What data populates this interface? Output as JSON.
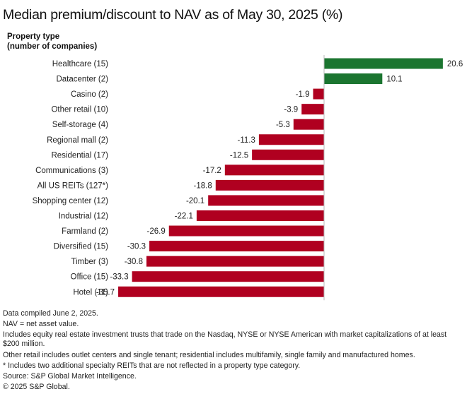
{
  "title": "Median premium/discount to NAV as of May 30, 2025 (%)",
  "axis_header": {
    "line1": "Property type",
    "line2": "(number of companies)"
  },
  "colors": {
    "positive": "#1b7530",
    "negative": "#b00020",
    "axis": "#b8b8b8"
  },
  "chart_data": {
    "type": "bar",
    "orientation": "horizontal",
    "title": "Median premium/discount to NAV as of May 30, 2025 (%)",
    "ylabel": "Property type (number of companies)",
    "xlabel": "",
    "xlim": [
      -35.7,
      20.6
    ],
    "grid": false,
    "legend": "none",
    "categories": [
      "Healthcare (15)",
      "Datacenter (2)",
      "Casino (2)",
      "Other retail (10)",
      "Self-storage (4)",
      "Regional mall (2)",
      "Residential (17)",
      "Communications (3)",
      "All US REITs (127*)",
      "Shopping center (12)",
      "Industrial (12)",
      "Farmland (2)",
      "Diversified (15)",
      "Timber (3)",
      "Office (15)",
      "Hotel (11)"
    ],
    "values": [
      20.6,
      10.1,
      -1.9,
      -3.9,
      -5.3,
      -11.3,
      -12.5,
      -17.2,
      -18.8,
      -20.1,
      -22.1,
      -26.9,
      -30.3,
      -30.8,
      -33.3,
      -35.7
    ],
    "value_labels": [
      "20.6",
      "10.1",
      "-1.9",
      "-3.9",
      "-5.3",
      "-11.3",
      "-12.5",
      "-17.2",
      "-18.8",
      "-20.1",
      "-22.1",
      "-26.9",
      "-30.3",
      "-30.8",
      "-33.3",
      "-35.7"
    ]
  },
  "footer": {
    "notes": [
      "Data compiled June 2, 2025.",
      "NAV = net asset value.",
      "Includes equity real estate investment trusts that trade on the Nasdaq, NYSE or NYSE American with market capitalizations of at least $200 million.",
      "Other retail includes outlet centers and single tenant; residential includes multifamily, single family and manufactured homes.",
      "* Includes two additional specialty REITs that are not reflected in a property type category.",
      "Source: S&P Global Market Intelligence.",
      "© 2025 S&P Global."
    ]
  }
}
